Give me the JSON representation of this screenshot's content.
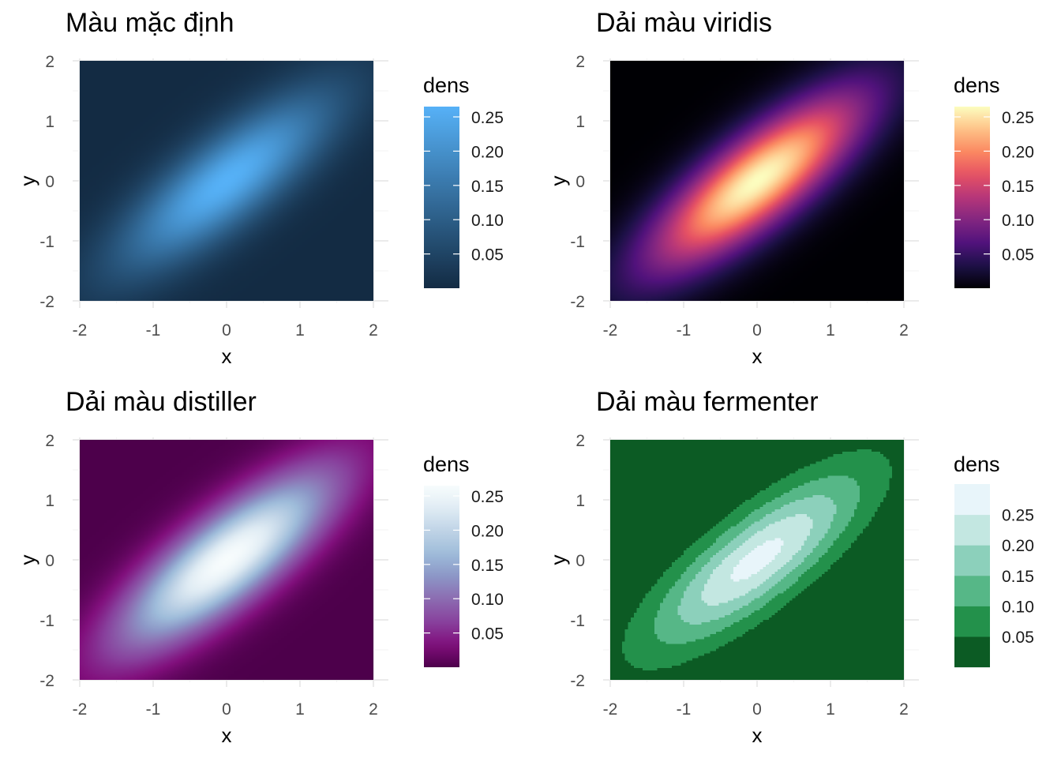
{
  "chart_data": [
    {
      "type": "heatmap",
      "title": "Màu mặc định",
      "xlabel": "x",
      "ylabel": "y",
      "xlim": [
        -2,
        2
      ],
      "ylim": [
        -2,
        2
      ],
      "x_ticks": [
        "-2",
        "-1",
        "0",
        "1",
        "2"
      ],
      "y_ticks": [
        "-2",
        "-1",
        "0",
        "1",
        "2"
      ],
      "grid": true,
      "z_function": "bivariate normal density, mean (0,0), sd 1, correlation 0.8",
      "z_max": 0.265,
      "legend": {
        "title": "dens",
        "type": "gradient",
        "range": [
          0,
          0.265
        ],
        "breaks": [
          0.05,
          0.1,
          0.15,
          0.2,
          0.25
        ],
        "labels": [
          "0.05",
          "0.10",
          "0.15",
          "0.20",
          "0.25"
        ],
        "placement": "right"
      },
      "palette": [
        "#132B43",
        "#56B1F7"
      ]
    },
    {
      "type": "heatmap",
      "title": "Dải màu viridis",
      "xlabel": "x",
      "ylabel": "y",
      "xlim": [
        -2,
        2
      ],
      "ylim": [
        -2,
        2
      ],
      "x_ticks": [
        "-2",
        "-1",
        "0",
        "1",
        "2"
      ],
      "y_ticks": [
        "-2",
        "-1",
        "0",
        "1",
        "2"
      ],
      "grid": true,
      "z_function": "bivariate normal density, mean (0,0), sd 1, correlation 0.8",
      "z_max": 0.265,
      "legend": {
        "title": "dens",
        "type": "gradient",
        "range": [
          0,
          0.265
        ],
        "breaks": [
          0.05,
          0.1,
          0.15,
          0.2,
          0.25
        ],
        "labels": [
          "0.05",
          "0.10",
          "0.15",
          "0.20",
          "0.25"
        ],
        "placement": "right"
      },
      "palette": [
        "#000004",
        "#1D1147",
        "#51127C",
        "#822681",
        "#B63679",
        "#E65164",
        "#FB8861",
        "#FEC287",
        "#FCFDBF"
      ]
    },
    {
      "type": "heatmap",
      "title": "Dải màu distiller",
      "xlabel": "x",
      "ylabel": "y",
      "xlim": [
        -2,
        2
      ],
      "ylim": [
        -2,
        2
      ],
      "x_ticks": [
        "-2",
        "-1",
        "0",
        "1",
        "2"
      ],
      "y_ticks": [
        "-2",
        "-1",
        "0",
        "1",
        "2"
      ],
      "grid": true,
      "z_function": "bivariate normal density, mean (0,0), sd 1, correlation 0.8",
      "z_max": 0.265,
      "legend": {
        "title": "dens",
        "type": "gradient",
        "range": [
          0,
          0.265
        ],
        "breaks": [
          0.05,
          0.1,
          0.15,
          0.2,
          0.25
        ],
        "labels": [
          "0.05",
          "0.10",
          "0.15",
          "0.20",
          "0.25"
        ],
        "placement": "right"
      },
      "palette": [
        "#4D004B",
        "#810F7C",
        "#88419D",
        "#8C6BB1",
        "#8C96C6",
        "#9EBCDA",
        "#BFD3E6",
        "#E0ECF4",
        "#F7FCFD"
      ]
    },
    {
      "type": "heatmap",
      "title": "Dải màu fermenter",
      "xlabel": "x",
      "ylabel": "y",
      "xlim": [
        -2,
        2
      ],
      "ylim": [
        -2,
        2
      ],
      "x_ticks": [
        "-2",
        "-1",
        "0",
        "1",
        "2"
      ],
      "y_ticks": [
        "-2",
        "-1",
        "0",
        "1",
        "2"
      ],
      "grid": true,
      "z_function": "bivariate normal density, mean (0,0), sd 1, correlation 0.8",
      "z_max": 0.265,
      "legend": {
        "title": "dens",
        "type": "binned",
        "range": [
          0,
          0.3
        ],
        "breaks": [
          0.05,
          0.1,
          0.15,
          0.2,
          0.25
        ],
        "labels": [
          "0.05",
          "0.10",
          "0.15",
          "0.20",
          "0.25"
        ],
        "placement": "right"
      },
      "palette": [
        "#0C5B24",
        "#23914B",
        "#56B787",
        "#8CD0BB",
        "#C3E7E1",
        "#E8F5FA"
      ]
    }
  ]
}
